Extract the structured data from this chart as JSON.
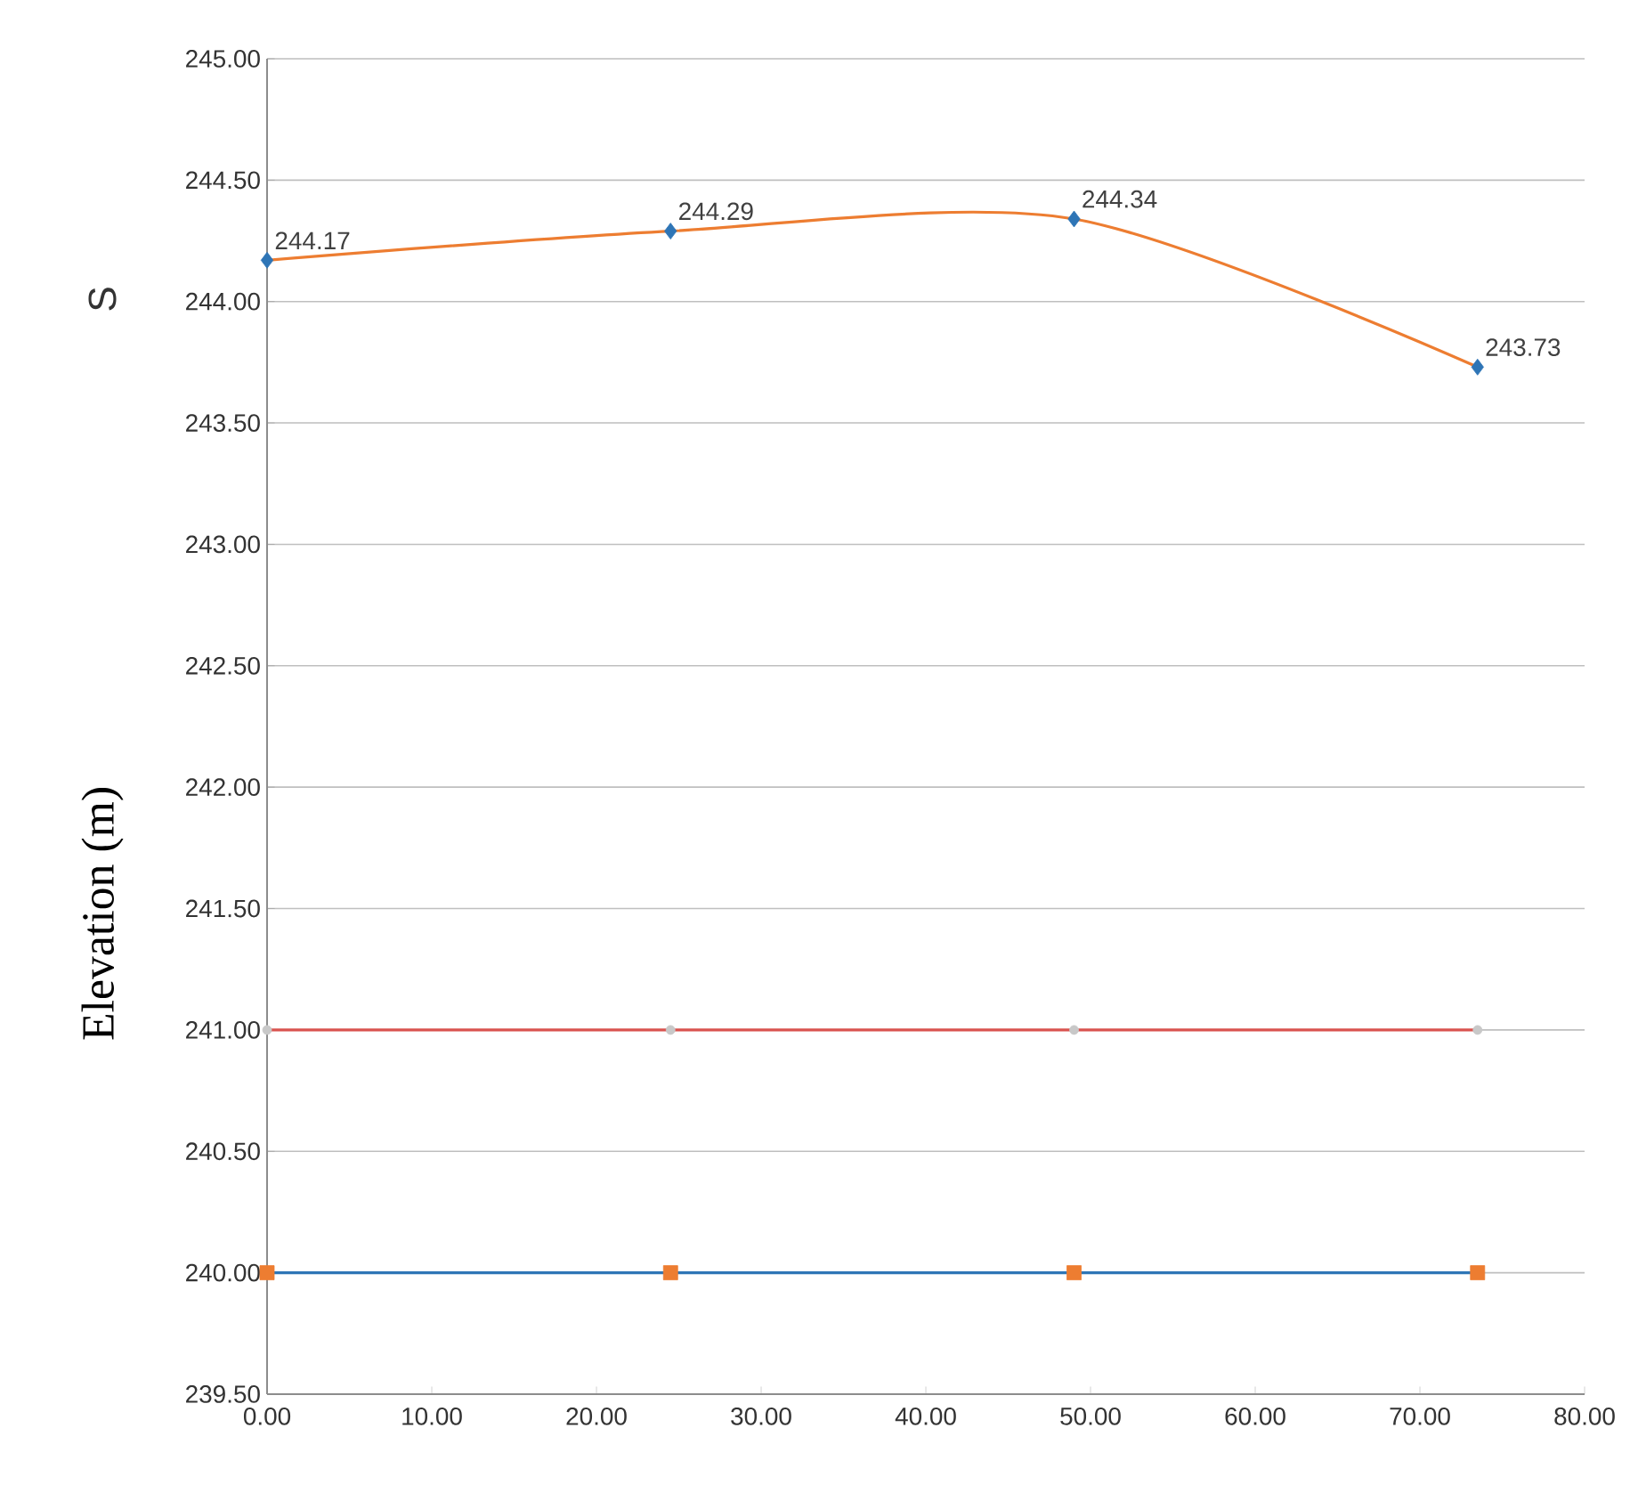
{
  "chart_data": {
    "type": "line",
    "ylabel": "Elevation (m)",
    "annotations": [
      "S"
    ],
    "x": [
      0,
      24.5,
      49,
      73.5
    ],
    "series": [
      {
        "color": "#ed7d31",
        "colors": [
          "#2e75b6",
          "#2e75b6",
          "#2e75b6",
          "#2e75b6"
        ],
        "marker": "diamond",
        "values": [
          244.17,
          244.29,
          244.34,
          243.73
        ],
        "value_labels": [
          "244.17",
          "244.29",
          "244.34",
          "243.73"
        ]
      },
      {
        "color": "#d9534f",
        "colors": [
          "#c8c8c8",
          "#c8c8c8",
          "#c8c8c8",
          "#c8c8c8"
        ],
        "marker": "circle",
        "values": [
          241.0,
          241.0,
          241.0,
          241.0
        ]
      },
      {
        "color": "#2e75b6",
        "colors": [
          "#ed7d31",
          "#ed7d31",
          "#ed7d31",
          "#ed7d31"
        ],
        "marker": "square",
        "values": [
          240.0,
          240.0,
          240.0,
          240.0
        ]
      }
    ],
    "xlim": [
      0,
      80
    ],
    "xticks": [
      {
        "value": 0,
        "label": "0.00"
      },
      {
        "value": 10,
        "label": "10.00"
      },
      {
        "value": 20,
        "label": "20.00"
      },
      {
        "value": 30,
        "label": "30.00"
      },
      {
        "value": 40,
        "label": "40.00"
      },
      {
        "value": 50,
        "label": "50.00"
      },
      {
        "value": 60,
        "label": "60.00"
      },
      {
        "value": 70,
        "label": "70.00"
      },
      {
        "value": 80,
        "label": "80.00"
      }
    ],
    "ylim": [
      239.5,
      245
    ],
    "yticks": [
      {
        "value": 239.5,
        "label": "239.50"
      },
      {
        "value": 240,
        "label": "240.00"
      },
      {
        "value": 240.5,
        "label": "240.50"
      },
      {
        "value": 241,
        "label": "241.00"
      },
      {
        "value": 241.5,
        "label": "241.50"
      },
      {
        "value": 242,
        "label": "242.00"
      },
      {
        "value": 242.5,
        "label": "242.50"
      },
      {
        "value": 243,
        "label": "243.00"
      },
      {
        "value": 243.5,
        "label": "243.50"
      },
      {
        "value": 244,
        "label": "244.00"
      },
      {
        "value": 244.5,
        "label": "244.50"
      },
      {
        "value": 245,
        "label": "245.00"
      }
    ],
    "grid": "y"
  }
}
